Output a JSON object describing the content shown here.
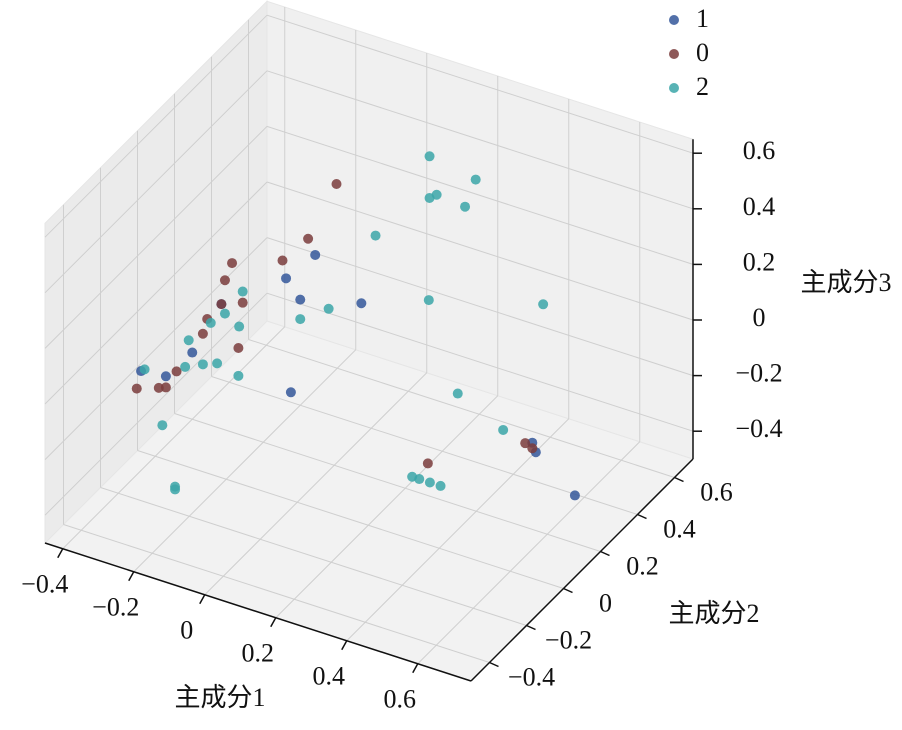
{
  "chart_data": {
    "type": "scatter3d",
    "xlabel": "主成分1",
    "ylabel": "主成分2",
    "zlabel": "主成分3",
    "xlim": [
      -0.45,
      0.75
    ],
    "ylim": [
      -0.5,
      0.7
    ],
    "zlim": [
      -0.5,
      0.65
    ],
    "xticks": [
      {
        "value": -0.4,
        "label": "−0.4"
      },
      {
        "value": -0.2,
        "label": "−0.2"
      },
      0,
      0.2,
      0.4,
      0.6
    ],
    "yticks": [
      {
        "value": -0.4,
        "label": "−0.4"
      },
      {
        "value": -0.2,
        "label": "−0.2"
      },
      0,
      0.2,
      0.4,
      0.6
    ],
    "zticks": [
      {
        "value": -0.4,
        "label": "−0.4"
      },
      {
        "value": -0.2,
        "label": "−0.2"
      },
      0,
      0.2,
      0.4,
      0.6
    ],
    "grid": true,
    "legend": "upper right",
    "series": [
      {
        "name": "1",
        "color": "#34579a",
        "x": [
          -0.21,
          -0.24,
          -0.37,
          -0.2,
          -0.08,
          -0.4,
          -0.37,
          -0.44,
          -0.07,
          0.61,
          0.62,
          0.73
        ],
        "y": [
          0.5,
          0.4,
          0.3,
          0.4,
          0.5,
          0.2,
          0,
          0,
          0.1,
          0.1,
          0.1,
          0.1
        ],
        "z": [
          -0.03,
          -0.06,
          -0.14,
          -0.12,
          -0.15,
          -0.26,
          -0.2,
          -0.21,
          -0.2,
          -0.1,
          -0.13,
          -0.24
        ]
      },
      {
        "name": "0",
        "color": "#7a3c3c",
        "x": [
          -0.15,
          -0.23,
          -0.25,
          -0.34,
          -0.36,
          -0.31,
          -0.37,
          -0.41,
          -0.37,
          -0.27,
          -0.34,
          -0.39,
          -0.37,
          -0.4,
          0.42,
          0.59,
          0.61
        ],
        "y": [
          0.5,
          0.5,
          0.4,
          0.3,
          0.3,
          0.3,
          0.3,
          0.3,
          0.2,
          0.2,
          0,
          0,
          0,
          -0.1,
          -0.1,
          0.1,
          0.1
        ],
        "z": [
          0.25,
          0.02,
          0.0,
          0.02,
          -0.05,
          -0.11,
          -0.14,
          -0.21,
          -0.18,
          -0.19,
          -0.17,
          -0.25,
          -0.24,
          -0.19,
          -0.12,
          -0.11,
          -0.12
        ]
      },
      {
        "name": "2",
        "color": "#3ba6a8",
        "x": [
          0.06,
          0.19,
          0.08,
          0.06,
          0.16,
          -0.04,
          0.38,
          0.11,
          -0.12,
          -0.2,
          -0.31,
          -0.36,
          -0.32,
          -0.4,
          -0.41,
          -0.42,
          -0.37,
          -0.33,
          -0.27,
          -0.43,
          -0.38,
          -0.24,
          -0.24,
          0.4,
          0.58,
          0.48,
          0.5,
          0.53,
          0.56
        ],
        "y": [
          0.6,
          0.6,
          0.6,
          0.6,
          0.6,
          0.5,
          0.6,
          0.5,
          0.4,
          0.4,
          0.3,
          0.3,
          0.3,
          0.3,
          0.2,
          0.2,
          0.2,
          0.2,
          0.2,
          0,
          0,
          -0.2,
          -0.2,
          0.1,
          0,
          -0.3,
          -0.3,
          -0.3,
          -0.3
        ],
        "z": [
          0.37,
          0.34,
          0.24,
          0.22,
          0.23,
          0.11,
          -0.03,
          -0.06,
          -0.12,
          -0.19,
          -0.07,
          -0.17,
          -0.2,
          -0.22,
          -0.22,
          -0.32,
          -0.29,
          -0.27,
          -0.29,
          -0.2,
          -0.38,
          -0.41,
          -0.42,
          -0.01,
          0.0,
          -0.01,
          -0.01,
          -0.01,
          -0.01
        ]
      }
    ]
  }
}
